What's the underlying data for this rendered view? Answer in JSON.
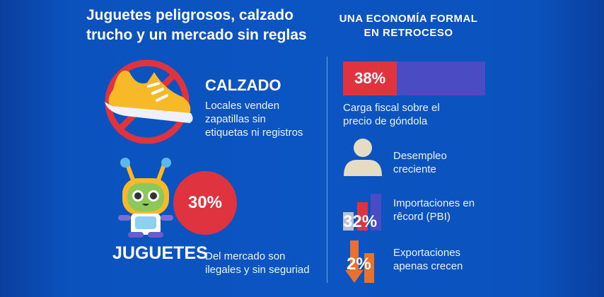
{
  "title": {
    "line1": "Juguetes peligrosos, calzado",
    "line2": "trucho y un mercado sin reglas"
  },
  "right_title": {
    "line1": "UNA ECONOMÍA FORMAL",
    "line2": "EN RETROCESO"
  },
  "calzado": {
    "heading": "CALZADO",
    "line1": "Locales venden",
    "line2": "zapatillas sin",
    "line3": "etiquetas ni registros",
    "icon": "prohibited-shoe-icon"
  },
  "juguetes": {
    "heading": "JUGUETES",
    "percent": "30%",
    "line1": "Del mercado son",
    "line2": "ilegales y sin seguriad",
    "icon": "robot-toy-icon"
  },
  "carga": {
    "percent": "38%",
    "fill_fraction": 0.38,
    "line1": "Carga fiscal sobre el",
    "line2": "precio de góndola"
  },
  "desempleo": {
    "line1": "Desempleo",
    "line2": "creciente",
    "icon": "person-icon"
  },
  "importaciones": {
    "percent": "32%",
    "line1": "Importaciones en",
    "line2": "rêcord (PBI)",
    "icon": "bar-chart-icon"
  },
  "exportaciones": {
    "percent": "2%",
    "line1": "Exportaciones",
    "line2": "apenas crecen",
    "icon": "down-arrow-icon"
  },
  "colors": {
    "red": "#e03340",
    "purple": "#4a4cc4",
    "orange": "#e8722c",
    "beige": "#e6dcc4",
    "yellow": "#f7b928"
  }
}
